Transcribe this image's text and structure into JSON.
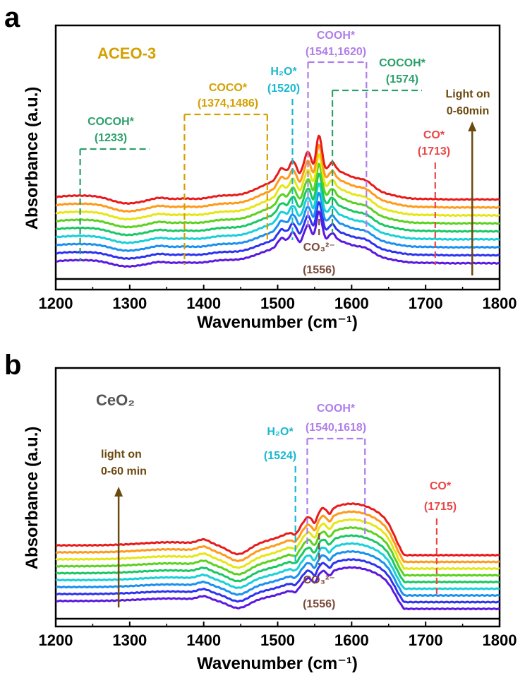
{
  "chart_data": [
    {
      "panel": "a",
      "type": "line",
      "sample_label": "ACEO-3",
      "xlabel": "Wavenumber (cm⁻¹)",
      "ylabel": "Absorbance (a.u.)",
      "xlim": [
        1200,
        1800
      ],
      "xticks": [
        1200,
        1300,
        1400,
        1500,
        1600,
        1700,
        1800
      ],
      "stacked_offset_series": 9,
      "series_colors": [
        "#5a18e0",
        "#2d32f0",
        "#1a90f0",
        "#18d0d8",
        "#19c864",
        "#5ad21e",
        "#e6e614",
        "#ff9a1a",
        "#e81a1a"
      ],
      "baseline_trace_color": "#000000",
      "arrow": {
        "label_line1": "Light on",
        "label_line2": "0-60min",
        "color": "#6b4a10",
        "x": 1763
      },
      "peaks": [
        {
          "name": "COCOH*",
          "position": "(1233)",
          "color": "#2aa06a",
          "x": 1233
        },
        {
          "name": "COCO*",
          "position": "(1374,1486)",
          "color": "#d4a000",
          "x": [
            1374,
            1486
          ]
        },
        {
          "name": "H₂O*",
          "position": "(1520)",
          "color": "#18b8d0",
          "x": 1520
        },
        {
          "name": "COOH*",
          "position": "(1541,1620)",
          "color": "#b07ee8",
          "x": [
            1541,
            1620
          ]
        },
        {
          "name": "COCOH*",
          "position": "(1574)",
          "color": "#2aa06a",
          "x": 1574
        },
        {
          "name": "CO*",
          "position": "(1713)",
          "color": "#e84848",
          "x": 1713
        },
        {
          "name": "CO₃²⁻",
          "position": "(1556)",
          "color": "#7b4a3a",
          "x": 1556
        }
      ]
    },
    {
      "panel": "b",
      "type": "line",
      "sample_label": "CeO₂",
      "xlabel": "Wavenumber (cm⁻¹)",
      "ylabel": "Absorbance (a.u.)",
      "xlim": [
        1200,
        1800
      ],
      "xticks": [
        1200,
        1300,
        1400,
        1500,
        1600,
        1700,
        1800
      ],
      "stacked_offset_series": 9,
      "series_colors": [
        "#5a18e0",
        "#2d32f0",
        "#1a90f0",
        "#18d0d8",
        "#19c864",
        "#5ad21e",
        "#e6e614",
        "#ff9a1a",
        "#e81a1a"
      ],
      "baseline_trace_color": "#000000",
      "arrow": {
        "label_line1": "light on",
        "label_line2": "0-60 min",
        "color": "#6b4a10",
        "x": 1285
      },
      "peaks": [
        {
          "name": "H₂O*",
          "position": "(1524)",
          "color": "#18b8d0",
          "x": 1524
        },
        {
          "name": "COOH*",
          "position": "(1540,1618)",
          "color": "#b07ee8",
          "x": [
            1540,
            1618
          ]
        },
        {
          "name": "CO*",
          "position": "(1715)",
          "color": "#e84848",
          "x": 1715
        },
        {
          "name": "CO₃²⁻",
          "position": "(1556)",
          "color": "#7b4a3a",
          "x": 1556
        }
      ]
    }
  ]
}
